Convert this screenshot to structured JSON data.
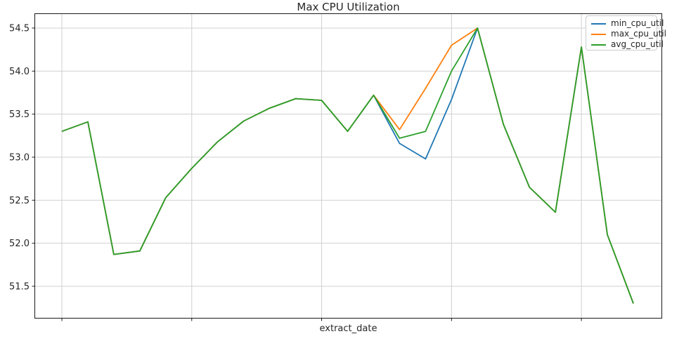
{
  "figure": {
    "background": "#ffffff"
  },
  "chart_data": {
    "type": "line",
    "title": "Max CPU Utilization",
    "xlabel": "extract_date",
    "ylabel": "",
    "grid": true,
    "legend_position": "upper right",
    "x": [
      0,
      1,
      2,
      3,
      4,
      5,
      6,
      7,
      8,
      9,
      10,
      11,
      12,
      13,
      14,
      15,
      16,
      17,
      18,
      19,
      20,
      21,
      22
    ],
    "x_tick_positions": [
      0,
      5,
      10,
      15,
      20
    ],
    "x_tick_labels": [
      "",
      "",
      "",
      "",
      ""
    ],
    "y_ticks": [
      54.5,
      54.0,
      53.5,
      53.0,
      52.5,
      52.0,
      51.5
    ],
    "y_tick_labels": [
      "54.5",
      "54.0",
      "53.5",
      "53.0",
      "52.5",
      "52.0",
      "51.5"
    ],
    "ylim": [
      51.13,
      54.67
    ],
    "series": [
      {
        "name": "min_cpu_util",
        "color": "#1f77b4",
        "values": [
          53.3,
          53.41,
          51.87,
          51.91,
          52.53,
          52.87,
          53.18,
          53.42,
          53.57,
          53.68,
          53.66,
          53.3,
          53.72,
          53.16,
          52.98,
          53.67,
          54.5,
          53.38,
          52.65,
          52.36,
          54.28,
          52.1,
          51.3
        ]
      },
      {
        "name": "max_cpu_util",
        "color": "#ff7f0e",
        "values": [
          53.3,
          53.41,
          51.87,
          51.91,
          52.53,
          52.87,
          53.18,
          53.42,
          53.57,
          53.68,
          53.66,
          53.3,
          53.72,
          53.32,
          53.8,
          54.3,
          54.5,
          53.38,
          52.65,
          52.36,
          54.28,
          52.1,
          51.3
        ]
      },
      {
        "name": "avg_cpu_util",
        "color": "#2ca02c",
        "values": [
          53.3,
          53.41,
          51.87,
          51.91,
          52.53,
          52.87,
          53.18,
          53.42,
          53.57,
          53.68,
          53.66,
          53.3,
          53.72,
          53.22,
          53.3,
          54.0,
          54.5,
          53.38,
          52.65,
          52.36,
          54.28,
          52.1,
          51.3
        ]
      }
    ],
    "colors": {
      "grid": "#d0d0d0",
      "spine": "#1a1a1a",
      "text": "#262626"
    }
  }
}
